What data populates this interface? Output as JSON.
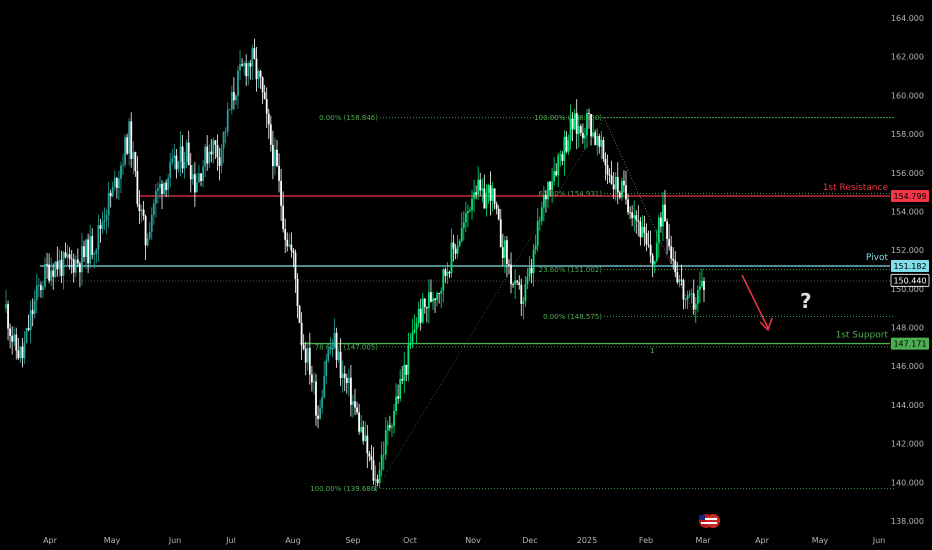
{
  "chart_data": {
    "type": "candlestick",
    "ylim": [
      137.2,
      165.0
    ],
    "x_ticks": [
      "Apr",
      "May",
      "Jun",
      "Jul",
      "Aug",
      "Sep",
      "Oct",
      "Nov",
      "Dec",
      "2025",
      "Feb",
      "Mar",
      "Apr",
      "May",
      "Jun"
    ],
    "y_ticks": [
      "138.000",
      "140.000",
      "142.000",
      "144.000",
      "146.000",
      "148.000",
      "150.000",
      "152.000",
      "154.000",
      "156.000",
      "158.000",
      "160.000",
      "162.000",
      "164.000"
    ],
    "y_tick_values": [
      138,
      140,
      142,
      144,
      146,
      148,
      150,
      152,
      154,
      156,
      158,
      160,
      162,
      164
    ],
    "closes": [
      149,
      147,
      146.5,
      148.5,
      150,
      151,
      151.3,
      151.2,
      151.4,
      151.5,
      152,
      152.5,
      154,
      155,
      156.5,
      158,
      155,
      152.5,
      154.5,
      155.5,
      156,
      156.5,
      157.2,
      155.5,
      156.5,
      157.5,
      157,
      158.8,
      160.5,
      161.5,
      161.8,
      160.5,
      158,
      156,
      153,
      151.5,
      147.5,
      146,
      143.5,
      146.5,
      147.2,
      145.5,
      144.5,
      143,
      141.5,
      140,
      141.8,
      143.5,
      145,
      146.5,
      148.5,
      149,
      149.8,
      150.3,
      151.5,
      152.5,
      153.5,
      155.5,
      154.5,
      155.2,
      153,
      151.5,
      149.8,
      149.5,
      151,
      153.5,
      155.5,
      156.5,
      157.5,
      158.5,
      158.2,
      158.8,
      157.5,
      156.5,
      155.5,
      155,
      154.5,
      153.5,
      152,
      151.5,
      154.5,
      152,
      150.5,
      149,
      149.5,
      150.4
    ],
    "levels": [
      {
        "label": "1st Resistance",
        "value": 154.799,
        "tag": "154.799",
        "color": "#f23645"
      },
      {
        "label": "Pivot",
        "value": 151.182,
        "tag": "151.182",
        "color": "#80deea"
      },
      {
        "label": "1st Support",
        "value": 147.171,
        "tag": "147.171",
        "color": "#4caf50"
      }
    ],
    "last_price": {
      "value": 150.44,
      "tag": "150.440"
    },
    "fib_levels": [
      {
        "label": "0.00% (158.846)",
        "value": 158.846
      },
      {
        "label": "100.00% (158.860)",
        "value": 158.86
      },
      {
        "label": "61.80% (154.931)",
        "value": 154.931
      },
      {
        "label": "23.60% (151.002)",
        "value": 151.002
      },
      {
        "label": "0.00% (148.575)",
        "value": 148.575
      },
      {
        "label": "78.60% (147.005)",
        "value": 147.005
      },
      {
        "label": "100.00% (139.686)",
        "value": 139.686
      }
    ],
    "question_mark": "?",
    "small_tick": "1",
    "colors": {
      "up": "#26a69a",
      "up_bright": "#00e676",
      "down": "#ffffff",
      "resistance": "#f23645",
      "pivot": "#80deea",
      "support": "#4caf50",
      "arrow": "#f23645",
      "fib": "#4caf50"
    }
  }
}
